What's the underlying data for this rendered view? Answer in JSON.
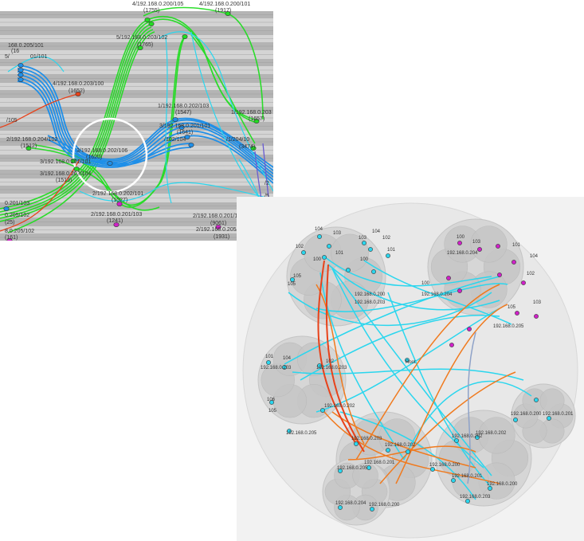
{
  "colors": {
    "green": "#22dd22",
    "blue": "#1f8fe8",
    "cyan": "#2ad6ee",
    "red": "#e8421a",
    "orange": "#f07a1e",
    "magenta": "#d020c8",
    "slate": "#8ea2c8",
    "bandDark": "#b4b4b4",
    "bandLight": "#d4d4d4",
    "bgCircle": "#ececec",
    "bubble": "#d6d6d6",
    "bubbleInner": "#c6c6c6"
  },
  "left_labels": [
    {
      "text": "4/192.168.0.200/105"
    },
    {
      "text": "(1755)"
    },
    {
      "text": "4/192.168.0.200/101"
    },
    {
      "text": "(1917)"
    },
    {
      "text": "5/192.168.0.203/102"
    },
    {
      "text": "(1765)"
    },
    {
      "text": "168.0.205/101"
    },
    {
      "text": "(16"
    },
    {
      "text": "5/"
    },
    {
      "text": "01/101"
    },
    {
      "text": "4/192.168.0.203/100"
    },
    {
      "text": "(1652)"
    },
    {
      "text": "1/192.168.0.202/103"
    },
    {
      "text": "(1547)"
    },
    {
      "text": "1/192.168.0.203"
    },
    {
      "text": "(1657)"
    },
    {
      "text": "/105"
    },
    {
      "text": "2/192.168.0.204/102"
    },
    {
      "text": "(1512)"
    },
    {
      "text": "3/192.168.0.201/101"
    },
    {
      "text": "(1641)"
    },
    {
      "text": "/102/104"
    },
    {
      "text": "/1/204/10"
    },
    {
      "text": "(3474)"
    },
    {
      "text": "3/192.168.0.202/106"
    },
    {
      "text": "(1620)"
    },
    {
      "text": "3/192.168.0.201/101"
    },
    {
      "text": "3/192.168.0.203/104"
    },
    {
      "text": "(1513)"
    },
    {
      "text": "2/192.168.0.202/101"
    },
    {
      "text": "(1027)"
    },
    {
      "text": "0.201/103"
    },
    {
      "text": "2/192.168.0.201/103"
    },
    {
      "text": "(1241)"
    },
    {
      "text": "2/192.168.0.201/106"
    },
    {
      "text": "(9061)"
    },
    {
      "text": "0.205/102"
    },
    {
      "text": "2/192.168.0.205/100"
    },
    {
      "text": "(1931)"
    },
    {
      "text": "(25)"
    },
    {
      "text": "8.0.205/102"
    },
    {
      "text": "(161)"
    },
    {
      "text": "/2"
    },
    {
      "text": "/5"
    }
  ],
  "right_labels": [
    {
      "text": "104"
    },
    {
      "text": "103"
    },
    {
      "text": "102"
    },
    {
      "text": "101"
    },
    {
      "text": "100"
    },
    {
      "text": "105"
    },
    {
      "text": "192.168.0.203"
    },
    {
      "text": "104"
    },
    {
      "text": "103"
    },
    {
      "text": "102"
    },
    {
      "text": "101"
    },
    {
      "text": "100"
    },
    {
      "text": "105"
    },
    {
      "text": "192.168.0.200"
    },
    {
      "text": "192.168.0.205"
    },
    {
      "text": "100"
    },
    {
      "text": "103"
    },
    {
      "text": "101"
    },
    {
      "text": "104"
    },
    {
      "text": "192.168.0.204"
    },
    {
      "text": "102"
    },
    {
      "text": "103"
    },
    {
      "text": "105"
    },
    {
      "text": "192.168.0.204"
    },
    {
      "text": "100"
    },
    {
      "text": "192.168.0.203"
    },
    {
      "text": "101"
    },
    {
      "text": "104"
    },
    {
      "text": "192.168.0.203"
    },
    {
      "text": "102"
    },
    {
      "text": "106"
    },
    {
      "text": "105"
    },
    {
      "text": "192.168.0.205"
    },
    {
      "text": "192.168.0.202"
    },
    {
      "text": "Root"
    },
    {
      "text": "192.168.0.200"
    },
    {
      "text": "192.168.0.201"
    },
    {
      "text": "192.168.0.203"
    },
    {
      "text": "192.168.0.202"
    },
    {
      "text": "192.168.0.201"
    },
    {
      "text": "192.168.0.205"
    },
    {
      "text": "192.168.0.204"
    },
    {
      "text": "192.168.0.202"
    },
    {
      "text": "192.168.0.200"
    },
    {
      "text": "192.168.0.203"
    },
    {
      "text": "192.168.0.200"
    },
    {
      "text": "192.168.0.201"
    },
    {
      "text": "192.168.0.202"
    },
    {
      "text": "192.168.0.200"
    }
  ]
}
